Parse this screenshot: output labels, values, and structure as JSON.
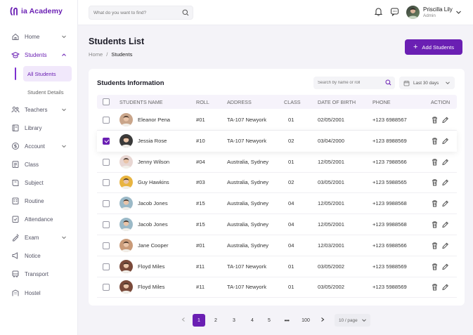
{
  "brand": {
    "name": "ia Academy",
    "color": "#6a1fb3"
  },
  "topbar": {
    "search_placeholder": "What do you want to find?",
    "user_name": "Priscilla Lily",
    "user_role": "Admin"
  },
  "sidebar": {
    "items": [
      {
        "label": "Home",
        "icon": "home-icon",
        "chevron": true
      },
      {
        "label": "Students",
        "icon": "students-icon",
        "chevron": true,
        "active": true
      },
      {
        "label": "Teachers",
        "icon": "teachers-icon",
        "chevron": true
      },
      {
        "label": "Library",
        "icon": "library-icon"
      },
      {
        "label": "Account",
        "icon": "account-icon",
        "chevron": true
      },
      {
        "label": "Class",
        "icon": "class-icon"
      },
      {
        "label": "Subject",
        "icon": "subject-icon"
      },
      {
        "label": "Routine",
        "icon": "routine-icon"
      },
      {
        "label": "Attendance",
        "icon": "attendance-icon"
      },
      {
        "label": "Exam",
        "icon": "exam-icon",
        "chevron": true
      },
      {
        "label": "Notice",
        "icon": "notice-icon"
      },
      {
        "label": "Transport",
        "icon": "transport-icon"
      },
      {
        "label": "Hostel",
        "icon": "hostel-icon"
      }
    ],
    "students_sub": [
      {
        "label": "All Students",
        "active": true
      },
      {
        "label": "Student Details"
      }
    ]
  },
  "header": {
    "title": "Students List",
    "breadcrumb": [
      "Home",
      "/",
      "Students"
    ],
    "add_button": "Add Students"
  },
  "table": {
    "title": "Students Information",
    "search_placeholder": "Search by name or roll",
    "date_filter": "Last 30 days",
    "columns": [
      "STUDENTS NAME",
      "ROLL",
      "ADDRESS",
      "CLASS",
      "DATE OF BIRTH",
      "PHONE",
      "ACTION"
    ],
    "rows": [
      {
        "name": "Eleanor Pena",
        "roll": "#01",
        "address": "TA-107 Newyork",
        "class": "01",
        "dob": "02/05/2001",
        "phone": "+123 6988567",
        "checked": false,
        "avatar_color": "#c9a58a"
      },
      {
        "name": "Jessia Rose",
        "roll": "#10",
        "address": "TA-107 Newyork",
        "class": "02",
        "dob": "03/04/2000",
        "phone": "+123 8988569",
        "checked": true,
        "avatar_color": "#3a3a3a"
      },
      {
        "name": "Jenny Wilson",
        "roll": "#04",
        "address": "Australia, Sydney",
        "class": "01",
        "dob": "12/05/2001",
        "phone": "+123 7988566",
        "checked": false,
        "avatar_color": "#e8d6d2"
      },
      {
        "name": "Guy Hawkins",
        "roll": "#03",
        "address": "Australia, Sydney",
        "class": "02",
        "dob": "03/05/2001",
        "phone": "+123 5988565",
        "checked": false,
        "avatar_color": "#e8b440"
      },
      {
        "name": "Jacob Jones",
        "roll": "#15",
        "address": "Australia, Sydney",
        "class": "04",
        "dob": "12/05/2001",
        "phone": "+123 9988568",
        "checked": false,
        "avatar_color": "#9bb9c7"
      },
      {
        "name": "Jacob Jones",
        "roll": "#15",
        "address": "Australia, Sydney",
        "class": "04",
        "dob": "12/05/2001",
        "phone": "+123 9988568",
        "checked": false,
        "avatar_color": "#9bb9c7"
      },
      {
        "name": "Jane Cooper",
        "roll": "#01",
        "address": "Australia, Sydney",
        "class": "04",
        "dob": "12/03/2001",
        "phone": "+123 6988566",
        "checked": false,
        "avatar_color": "#c99a78"
      },
      {
        "name": "Floyd Miles",
        "roll": "#11",
        "address": "TA-107 Newyork",
        "class": "01",
        "dob": "03/05/2002",
        "phone": "+123 5988569",
        "checked": false,
        "avatar_color": "#7a4a3a"
      },
      {
        "name": "Floyd Miles",
        "roll": "#11",
        "address": "TA-107 Newyork",
        "class": "01",
        "dob": "03/05/2002",
        "phone": "+123 5988569",
        "checked": false,
        "avatar_color": "#7a4a3a"
      }
    ]
  },
  "pagination": {
    "pages": [
      "1",
      "2",
      "3",
      "4",
      "5"
    ],
    "ellipsis": "•••",
    "last": "100",
    "current": "1",
    "per_page": "10 / page"
  }
}
